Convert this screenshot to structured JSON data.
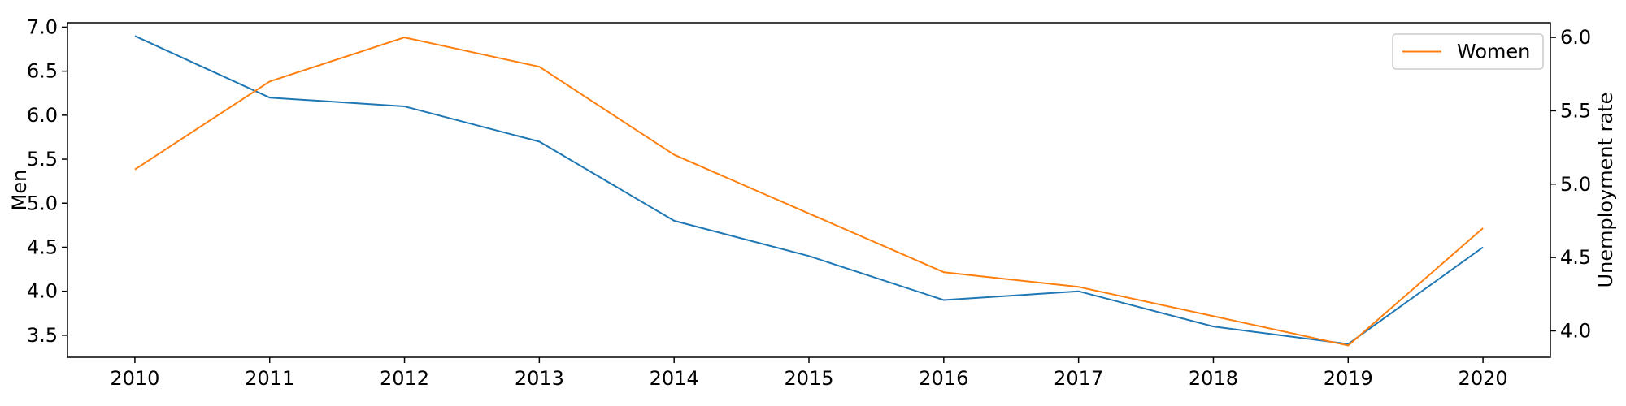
{
  "chart_data": {
    "type": "line",
    "x": [
      2010,
      2011,
      2012,
      2013,
      2014,
      2015,
      2016,
      2017,
      2018,
      2019,
      2020
    ],
    "xticks": [
      "2010",
      "2011",
      "2012",
      "2013",
      "2014",
      "2015",
      "2016",
      "2017",
      "2018",
      "2019",
      "2020"
    ],
    "series": [
      {
        "name": "Men",
        "axis": "left",
        "color": "#1f77b4",
        "values": [
          6.9,
          6.2,
          6.1,
          5.7,
          4.8,
          4.4,
          3.9,
          4.0,
          3.6,
          3.4,
          4.5
        ]
      },
      {
        "name": "Women",
        "axis": "right",
        "color": "#ff7f0e",
        "values": [
          5.1,
          5.7,
          6.0,
          5.8,
          5.2,
          4.8,
          4.4,
          4.3,
          4.1,
          3.9,
          4.7
        ]
      }
    ],
    "ylabel_left": "Men",
    "ylabel_right": "Unemployment rate",
    "ylim_left": [
      3.25,
      7.05
    ],
    "ylim_right": [
      3.82,
      6.1
    ],
    "yticks_left": [
      "3.5",
      "4.0",
      "4.5",
      "5.0",
      "5.5",
      "6.0",
      "6.5",
      "7.0"
    ],
    "yticks_right": [
      "4.0",
      "4.5",
      "5.0",
      "5.5",
      "6.0"
    ],
    "xlim": [
      2009.5,
      2020.5
    ],
    "legend": {
      "entries": [
        "Women"
      ],
      "position": "upper-right"
    },
    "grid": false
  }
}
